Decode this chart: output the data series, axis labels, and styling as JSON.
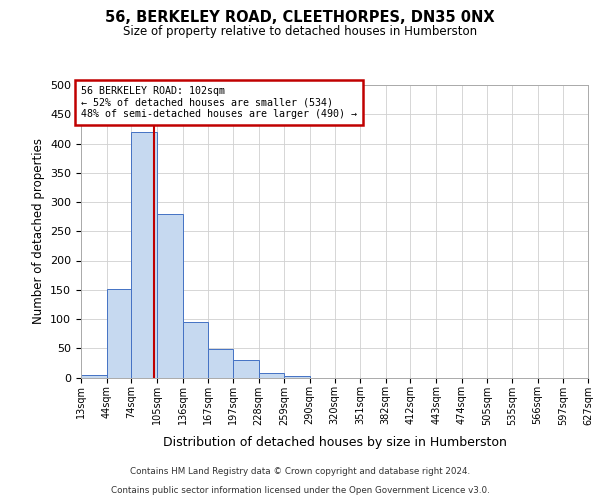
{
  "title": "56, BERKELEY ROAD, CLEETHORPES, DN35 0NX",
  "subtitle": "Size of property relative to detached houses in Humberston",
  "xlabel": "Distribution of detached houses by size in Humberston",
  "ylabel": "Number of detached properties",
  "bin_edges": [
    13,
    44,
    74,
    105,
    136,
    167,
    197,
    228,
    259,
    290,
    320,
    351,
    382,
    412,
    443,
    474,
    505,
    535,
    566,
    597,
    627
  ],
  "bar_heights": [
    5,
    152,
    420,
    280,
    95,
    48,
    30,
    8,
    2,
    0,
    0,
    0,
    0,
    0,
    0,
    0,
    0,
    0,
    0,
    0
  ],
  "bar_color": "#c6d9f0",
  "bar_edge_color": "#4472c4",
  "reference_line_x": 102,
  "reference_line_color": "#c00000",
  "annotation_text": "56 BERKELEY ROAD: 102sqm\n← 52% of detached houses are smaller (534)\n48% of semi-detached houses are larger (490) →",
  "annotation_box_color": "#ffffff",
  "annotation_box_edge": "#c00000",
  "ylim": [
    0,
    500
  ],
  "yticks": [
    0,
    50,
    100,
    150,
    200,
    250,
    300,
    350,
    400,
    450,
    500
  ],
  "tick_labels": [
    "13sqm",
    "44sqm",
    "74sqm",
    "105sqm",
    "136sqm",
    "167sqm",
    "197sqm",
    "228sqm",
    "259sqm",
    "290sqm",
    "320sqm",
    "351sqm",
    "382sqm",
    "412sqm",
    "443sqm",
    "474sqm",
    "505sqm",
    "535sqm",
    "566sqm",
    "597sqm",
    "627sqm"
  ],
  "footer_line1": "Contains HM Land Registry data © Crown copyright and database right 2024.",
  "footer_line2": "Contains public sector information licensed under the Open Government Licence v3.0.",
  "background_color": "#ffffff",
  "grid_color": "#d0d0d0"
}
